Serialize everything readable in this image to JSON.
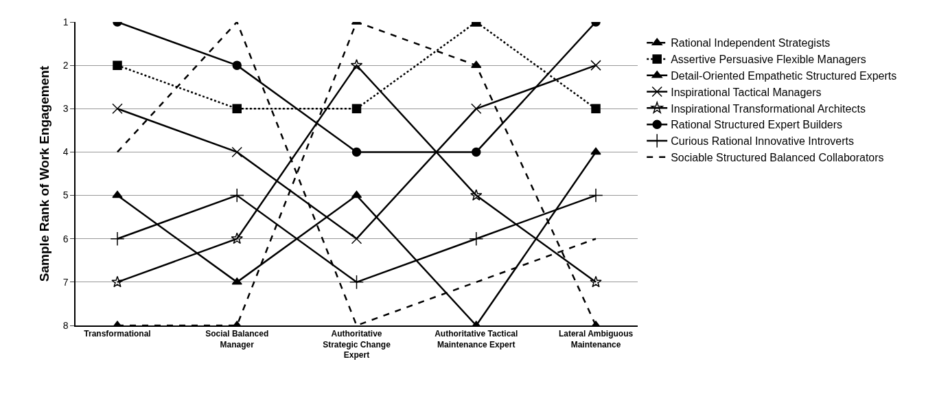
{
  "chart_data": {
    "type": "line",
    "ylabel": "Sample Rank of Work Engagement",
    "categories": [
      "Transformational",
      "Social Balanced Manager",
      "Authoritative Strategic Change Expert",
      "Authoritative Tactical Maintenance Expert",
      "Lateral Ambiguous Maintenance"
    ],
    "ylim": [
      8,
      1
    ],
    "yticks": [
      1,
      2,
      3,
      4,
      5,
      6,
      7,
      8
    ],
    "grid": "y",
    "legend": "right",
    "series": [
      {
        "name": "Rational Independent Strategists",
        "color": "#000000",
        "line_style": "dashed",
        "marker": "triangle",
        "values": [
          8,
          8,
          1,
          2,
          8
        ]
      },
      {
        "name": "Assertive Persuasive Flexible Managers",
        "color": "#000000",
        "line_style": "dotted",
        "marker": "square",
        "values": [
          2,
          3,
          3,
          1,
          3
        ]
      },
      {
        "name": "Detail-Oriented Empathetic Structured Experts",
        "color": "#000000",
        "line_style": "solid",
        "marker": "triangle",
        "values": [
          5,
          7,
          5,
          8,
          4
        ]
      },
      {
        "name": "Inspirational Tactical Managers",
        "color": "#000000",
        "line_style": "solid",
        "marker": "cross",
        "values": [
          3,
          4,
          6,
          3,
          2
        ]
      },
      {
        "name": "Inspirational Transformational Architects",
        "color": "#000000",
        "line_style": "solid",
        "marker": "star",
        "values": [
          7,
          6,
          2,
          5,
          7
        ]
      },
      {
        "name": "Rational Structured Expert Builders",
        "color": "#000000",
        "line_style": "solid",
        "marker": "circle",
        "values": [
          1,
          2,
          4,
          4,
          1
        ]
      },
      {
        "name": "Curious Rational Innovative Introverts",
        "color": "#000000",
        "line_style": "solid",
        "marker": "plus",
        "values": [
          6,
          5,
          7,
          6,
          5
        ]
      },
      {
        "name": "Sociable Structured Balanced Collaborators",
        "color": "#000000",
        "line_style": "dashed",
        "marker": "none",
        "values": [
          4,
          1,
          8,
          7,
          6
        ]
      }
    ]
  }
}
